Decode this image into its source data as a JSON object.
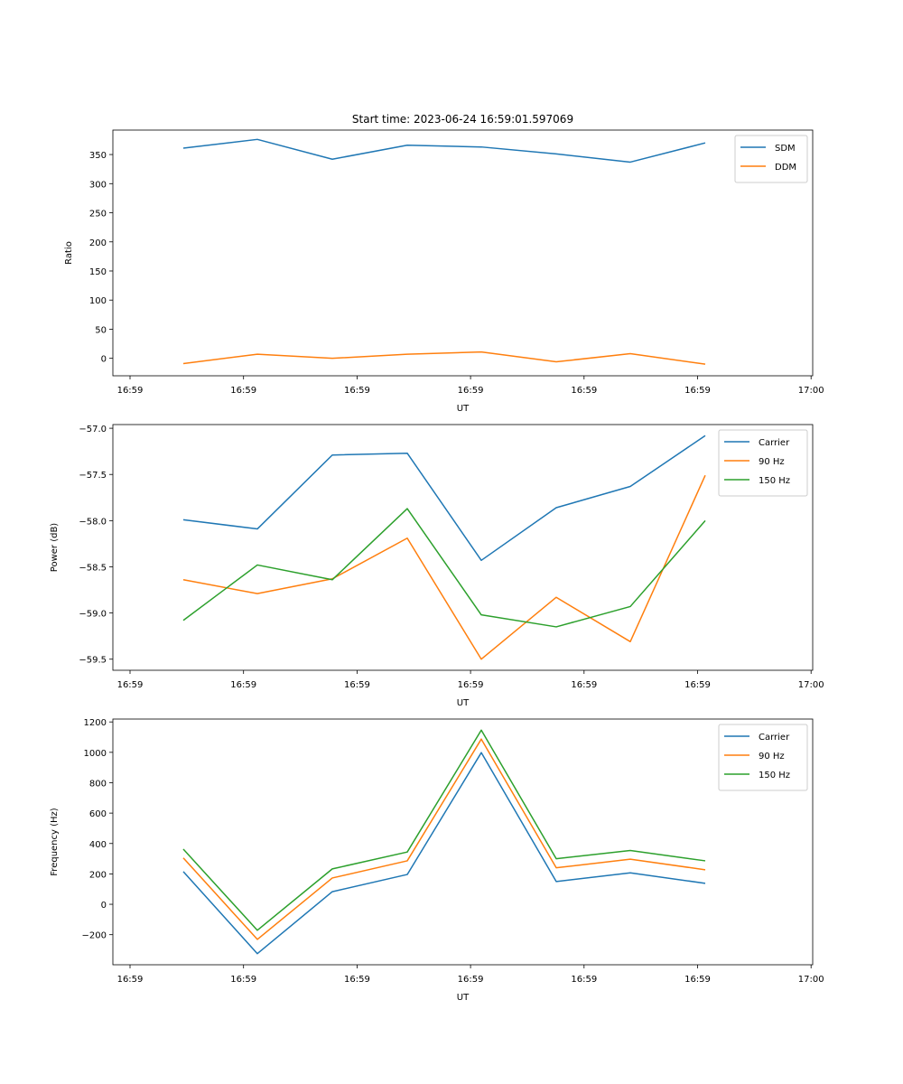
{
  "chart_data": [
    {
      "type": "line",
      "title": "Start time: 2023-06-24 16:59:01.597069",
      "xlabel": "UT",
      "ylabel": "Ratio",
      "x_ticks": [
        "16:59",
        "16:59",
        "16:59",
        "16:59",
        "16:59",
        "16:59",
        "17:00"
      ],
      "y_ticks": [
        0,
        50,
        100,
        150,
        200,
        250,
        300,
        350
      ],
      "ylim": [
        -30,
        392
      ],
      "legend_position": "top-right",
      "series": [
        {
          "name": "SDM",
          "color": "#1f77b4",
          "values": [
            361,
            376,
            342,
            366,
            363,
            351,
            337,
            370
          ]
        },
        {
          "name": "DDM",
          "color": "#ff7f0e",
          "values": [
            -9,
            7,
            0,
            7,
            11,
            -6,
            8,
            -10
          ]
        }
      ]
    },
    {
      "type": "line",
      "title": "",
      "xlabel": "UT",
      "ylabel": "Power (dB)",
      "x_ticks": [
        "16:59",
        "16:59",
        "16:59",
        "16:59",
        "16:59",
        "16:59",
        "17:00"
      ],
      "y_ticks": [
        -59.5,
        -59.0,
        -58.5,
        -58.0,
        -57.5,
        -57.0
      ],
      "ylim": [
        -59.62,
        -56.96
      ],
      "legend_position": "top-right",
      "series": [
        {
          "name": "Carrier",
          "color": "#1f77b4",
          "values": [
            -57.99,
            -58.09,
            -57.29,
            -57.27,
            -58.43,
            -57.86,
            -57.63,
            -57.08
          ]
        },
        {
          "name": "90 Hz",
          "color": "#ff7f0e",
          "values": [
            -58.64,
            -58.79,
            -58.63,
            -58.19,
            -59.5,
            -58.83,
            -59.31,
            -57.51
          ]
        },
        {
          "name": "150 Hz",
          "color": "#2ca02c",
          "values": [
            -59.08,
            -58.48,
            -58.64,
            -57.87,
            -59.02,
            -59.15,
            -58.93,
            -58.0
          ]
        }
      ]
    },
    {
      "type": "line",
      "title": "",
      "xlabel": "UT",
      "ylabel": "Frequency (Hz)",
      "x_ticks": [
        "16:59",
        "16:59",
        "16:59",
        "16:59",
        "16:59",
        "16:59",
        "17:00"
      ],
      "y_ticks": [
        -200,
        0,
        200,
        400,
        600,
        800,
        1000,
        1200
      ],
      "ylim": [
        -398,
        1219
      ],
      "legend_position": "top-right",
      "series": [
        {
          "name": "Carrier",
          "color": "#1f77b4",
          "values": [
            215,
            -325,
            83,
            196,
            998,
            150,
            207,
            138
          ]
        },
        {
          "name": "90 Hz",
          "color": "#ff7f0e",
          "values": [
            305,
            -231,
            173,
            286,
            1087,
            240,
            297,
            227
          ]
        },
        {
          "name": "150 Hz",
          "color": "#2ca02c",
          "values": [
            363,
            -171,
            233,
            344,
            1146,
            300,
            354,
            286
          ]
        }
      ]
    }
  ]
}
